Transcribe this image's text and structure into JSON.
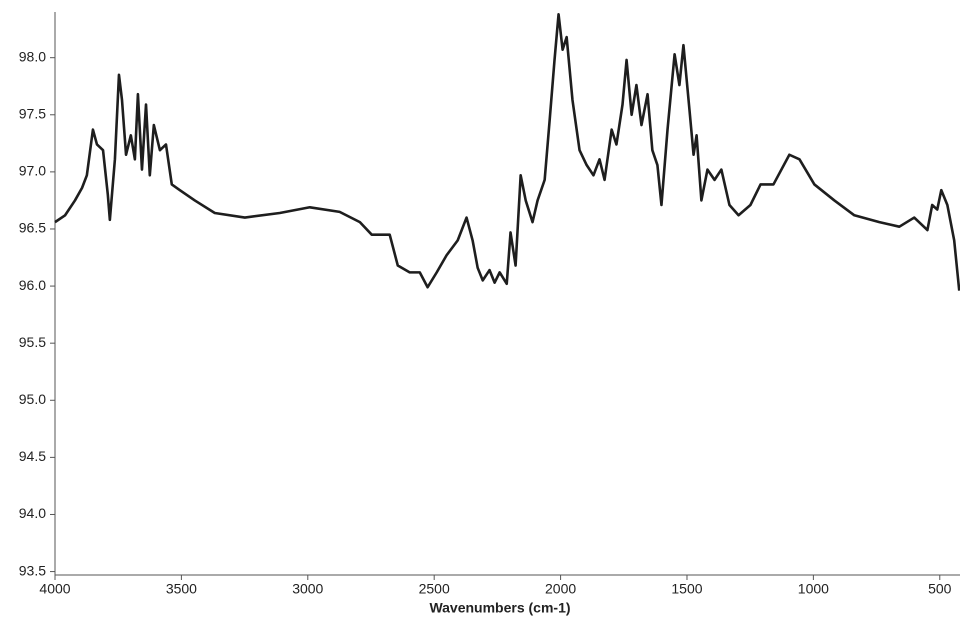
{
  "chart_data": {
    "type": "line",
    "x_label": "Wavenumbers (cm-1)",
    "x": [
      4000,
      3960,
      3921,
      3893,
      3874,
      3850,
      3834,
      3810,
      3791,
      3783,
      3763,
      3747,
      3735,
      3719,
      3700,
      3684,
      3672,
      3656,
      3640,
      3625,
      3609,
      3585,
      3561,
      3538,
      3506,
      3447,
      3368,
      3249,
      3111,
      2992,
      2874,
      2794,
      2747,
      2676,
      2644,
      2597,
      2557,
      2526,
      2490,
      2451,
      2407,
      2372,
      2348,
      2328,
      2308,
      2281,
      2261,
      2241,
      2213,
      2198,
      2178,
      2158,
      2138,
      2111,
      2091,
      2063,
      2043,
      2024,
      2008,
      1992,
      1976,
      1953,
      1925,
      1897,
      1870,
      1846,
      1826,
      1798,
      1779,
      1755,
      1739,
      1719,
      1700,
      1680,
      1656,
      1637,
      1617,
      1601,
      1577,
      1549,
      1530,
      1514,
      1490,
      1474,
      1462,
      1443,
      1419,
      1391,
      1364,
      1332,
      1296,
      1249,
      1209,
      1158,
      1095,
      1055,
      996,
      917,
      838,
      739,
      660,
      601,
      549,
      530,
      510,
      494,
      470,
      443,
      423
    ],
    "values": [
      96.56,
      96.62,
      96.75,
      96.86,
      96.97,
      97.37,
      97.24,
      97.19,
      96.8,
      96.58,
      97.11,
      97.85,
      97.63,
      97.15,
      97.32,
      97.11,
      97.68,
      97.02,
      97.59,
      96.97,
      97.41,
      97.19,
      97.24,
      96.89,
      96.84,
      96.75,
      96.64,
      96.6,
      96.64,
      96.69,
      96.65,
      96.56,
      96.45,
      96.45,
      96.18,
      96.12,
      96.12,
      95.99,
      96.12,
      96.27,
      96.4,
      96.6,
      96.4,
      96.16,
      96.05,
      96.14,
      96.03,
      96.12,
      96.02,
      96.47,
      96.18,
      96.97,
      96.75,
      96.56,
      96.75,
      96.93,
      97.46,
      97.98,
      98.38,
      98.07,
      98.18,
      97.63,
      97.19,
      97.06,
      96.97,
      97.11,
      96.93,
      97.37,
      97.24,
      97.59,
      97.98,
      97.5,
      97.76,
      97.41,
      97.68,
      97.19,
      97.06,
      96.71,
      97.37,
      98.03,
      97.76,
      98.11,
      97.54,
      97.15,
      97.32,
      96.75,
      97.02,
      96.93,
      97.02,
      96.71,
      96.62,
      96.71,
      96.89,
      96.89,
      97.15,
      97.11,
      96.89,
      96.75,
      96.62,
      96.56,
      96.52,
      96.6,
      96.49,
      96.71,
      96.67,
      96.84,
      96.71,
      96.4,
      95.96
    ],
    "color": "#1e1e1e",
    "xlim": [
      4000,
      420
    ],
    "xticks": [
      4000,
      3500,
      3000,
      2500,
      2000,
      1500,
      1000,
      500
    ],
    "ylim": [
      93.47,
      98.4
    ],
    "yticks": [
      {
        "value": 93.5,
        "label": "93.5"
      },
      {
        "value": 94,
        "label": "94.0"
      },
      94.5,
      {
        "value": 95,
        "label": "95.0"
      },
      95.5,
      {
        "value": 96,
        "label": "96.0"
      },
      96.5,
      {
        "value": 97,
        "label": "97.0"
      },
      97.5,
      {
        "value": 98,
        "label": "98.0"
      }
    ]
  }
}
